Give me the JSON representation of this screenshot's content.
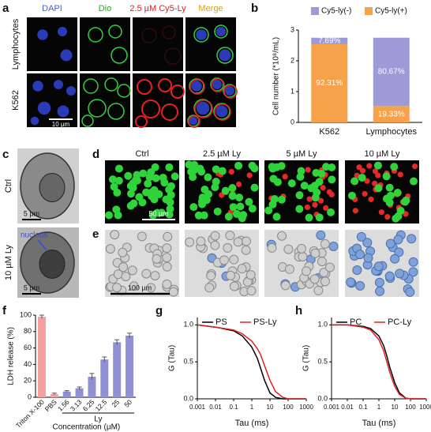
{
  "panels": {
    "a": {
      "label": "a",
      "columns": [
        "DAPI",
        "Dio",
        "2.5 µM Cy5-Ly",
        "Merge"
      ],
      "rows": [
        "Lymphocytes",
        "K562"
      ],
      "scale_bar": "10 µm"
    },
    "c": {
      "label": "c",
      "rows": [
        "Ctrl",
        "10 µM Ly"
      ],
      "scale_bars": [
        "5 µm",
        "5 µm"
      ],
      "annotation": "nucleus"
    },
    "d": {
      "label": "d",
      "columns": [
        "Ctrl",
        "2.5 µM Ly",
        "5 µM Ly",
        "10 µM Ly"
      ],
      "scale_bar": "50 µm"
    },
    "e": {
      "label": "e",
      "scale_bar": "100 µm"
    }
  },
  "chart_data": [
    {
      "panel": "b",
      "type": "stacked_bar",
      "y_label": "Cell number (*10⁸/mL)",
      "categories": [
        "K562",
        "Lymphocytes"
      ],
      "series": [
        {
          "name": "Cy5-ly(-)",
          "color": "#9d9ad6",
          "values": [
            0.21,
            2.22
          ],
          "labels": [
            "7.69%",
            "80.67%"
          ]
        },
        {
          "name": "Cy5-ly(+)",
          "color": "#f6a24b",
          "values": [
            2.54,
            0.53
          ],
          "labels": [
            "92.31%",
            "19.33%"
          ]
        }
      ],
      "ylim": [
        0,
        3
      ],
      "yticks": [
        0,
        1,
        2,
        3
      ],
      "legend": "top"
    },
    {
      "panel": "f",
      "type": "bar",
      "y_label": "LDH release (%)",
      "x_label": "Concentration (µM)",
      "group_label": "Ly",
      "categories": [
        "Triton X-100",
        "PBS",
        "1.56",
        "3.13",
        "6.25",
        "12.5",
        "25",
        "50"
      ],
      "values": [
        98,
        4,
        7,
        11,
        25,
        46,
        67,
        75
      ],
      "errors": [
        2,
        1,
        1,
        1.5,
        4,
        3,
        3,
        3
      ],
      "colors": [
        "#f4a0a0",
        "#f4a0a0",
        "#9090d4",
        "#9090d4",
        "#9090d4",
        "#9090d4",
        "#9090d4",
        "#9090d4"
      ],
      "ylim": [
        0,
        100
      ],
      "yticks": [
        0,
        20,
        40,
        60,
        80,
        100
      ]
    },
    {
      "panel": "g",
      "type": "line",
      "x_scale": "log",
      "x_label": "Tau (ms)",
      "y_label": "G (Tau)",
      "x": [
        0.001,
        0.01,
        0.1,
        0.3,
        1,
        2,
        3,
        5,
        10,
        20,
        50,
        100,
        1000
      ],
      "series": [
        {
          "name": "PS",
          "color": "#000000",
          "values": [
            1.0,
            0.97,
            0.92,
            0.85,
            0.7,
            0.55,
            0.42,
            0.25,
            0.08,
            0.02,
            0,
            0,
            0
          ]
        },
        {
          "name": "PS-Ly",
          "color": "#e02020",
          "values": [
            1.0,
            0.97,
            0.93,
            0.88,
            0.78,
            0.68,
            0.6,
            0.45,
            0.25,
            0.1,
            0.02,
            0,
            0
          ]
        }
      ],
      "xlim": [
        0.001,
        1000
      ],
      "xticks": [
        0.001,
        0.01,
        0.1,
        1,
        10,
        100,
        1000
      ],
      "ylim": [
        0,
        1.1
      ],
      "yticks": [
        {
          "value": 0,
          "label": "0.0"
        },
        {
          "value": 0.5,
          "label": "0.5"
        },
        {
          "value": 1,
          "label": "1.0"
        }
      ],
      "legend": "top"
    },
    {
      "panel": "h",
      "type": "line",
      "x_scale": "log",
      "x_label": "Tau (ms)",
      "y_label": "G (Tau)",
      "x": [
        0.001,
        0.01,
        0.1,
        0.3,
        1,
        2,
        3,
        5,
        10,
        20,
        50,
        100,
        1000
      ],
      "series": [
        {
          "name": "PC",
          "color": "#000000",
          "values": [
            1.0,
            1.0,
            0.98,
            0.95,
            0.85,
            0.72,
            0.6,
            0.42,
            0.22,
            0.08,
            0.01,
            0,
            0
          ]
        },
        {
          "name": "PC-Ly",
          "color": "#e02020",
          "values": [
            1.0,
            1.0,
            0.97,
            0.93,
            0.8,
            0.65,
            0.52,
            0.35,
            0.17,
            0.06,
            0.01,
            0,
            0
          ]
        }
      ],
      "xlim": [
        0.001,
        1000
      ],
      "xticks": [
        0.001,
        0.01,
        0.1,
        1,
        10,
        100,
        1000
      ],
      "ylim": [
        0,
        1.1
      ],
      "yticks": [
        {
          "value": 0,
          "label": "0.0"
        },
        {
          "value": 0.5,
          "label": "0.5"
        },
        {
          "value": 1,
          "label": "1.0"
        }
      ],
      "legend": "top"
    }
  ]
}
